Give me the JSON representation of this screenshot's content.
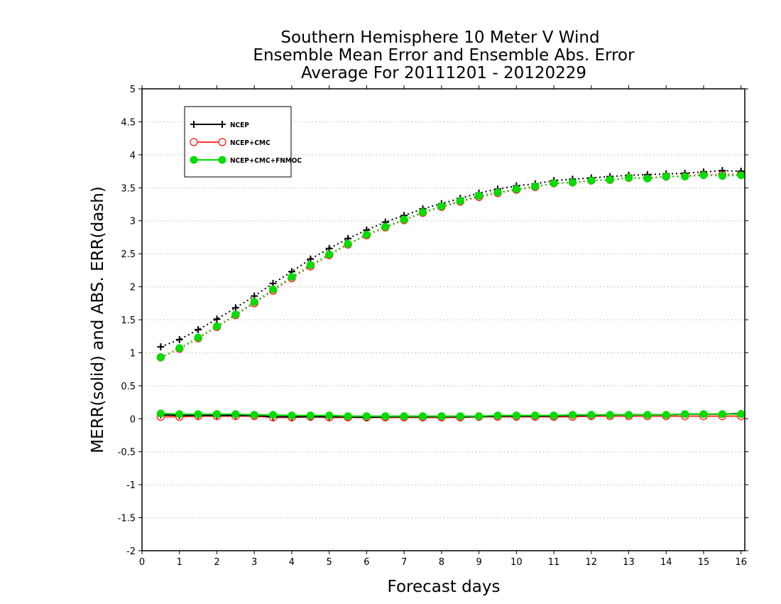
{
  "chart_data": {
    "type": "line",
    "title": [
      "Southern Hemisphere 10 Meter V Wind",
      "Ensemble Mean Error and Ensemble Abs. Error",
      "Average For 20111201 - 20120229"
    ],
    "xlabel": "Forecast days",
    "ylabel": "MERR(solid) and ABS. ERR(dash)",
    "xlim": [
      0,
      16.1
    ],
    "ylim": [
      -2,
      5
    ],
    "x_ticks": [
      0,
      1,
      2,
      3,
      4,
      5,
      6,
      7,
      8,
      9,
      10,
      11,
      12,
      13,
      14,
      15,
      16
    ],
    "y_ticks": [
      -2,
      -1.5,
      -1,
      -0.5,
      0,
      0.5,
      1,
      1.5,
      2,
      2.5,
      3,
      3.5,
      4,
      4.5,
      5
    ],
    "y_tick_labels": [
      "-2",
      "-1.5",
      "-1",
      "-0.5",
      "0",
      "0.5",
      "1",
      "1.5",
      "2",
      "2.5",
      "3",
      "3.5",
      "4",
      "4.5",
      "5"
    ],
    "grid": "horizontal dotted",
    "legend_position": "top-left",
    "x": [
      0.5,
      1,
      1.5,
      2,
      2.5,
      3,
      3.5,
      4,
      4.5,
      5,
      5.5,
      6,
      6.5,
      7,
      7.5,
      8,
      8.5,
      9,
      9.5,
      10,
      10.5,
      11,
      11.5,
      12,
      12.5,
      13,
      13.5,
      14,
      14.5,
      15,
      15.5,
      16
    ],
    "series": [
      {
        "name": "NCEP",
        "color": "#000000",
        "marker": "plus",
        "abs_err": [
          1.09,
          1.2,
          1.35,
          1.51,
          1.68,
          1.86,
          2.05,
          2.23,
          2.42,
          2.58,
          2.73,
          2.86,
          2.98,
          3.08,
          3.18,
          3.26,
          3.34,
          3.42,
          3.48,
          3.53,
          3.56,
          3.61,
          3.63,
          3.65,
          3.67,
          3.69,
          3.7,
          3.71,
          3.72,
          3.74,
          3.76,
          3.75
        ],
        "mean_err": [
          0.06,
          0.05,
          0.05,
          0.05,
          0.05,
          0.05,
          0.03,
          0.03,
          0.03,
          0.03,
          0.03,
          0.02,
          0.03,
          0.03,
          0.03,
          0.03,
          0.03,
          0.03,
          0.04,
          0.04,
          0.04,
          0.04,
          0.05,
          0.05,
          0.06,
          0.06,
          0.06,
          0.06,
          0.07,
          0.07,
          0.07,
          0.08
        ]
      },
      {
        "name": "NCEP+CMC",
        "color": "#ff3333",
        "marker": "open-circle",
        "abs_err": [
          0.93,
          1.06,
          1.22,
          1.39,
          1.57,
          1.75,
          1.94,
          2.13,
          2.31,
          2.48,
          2.64,
          2.78,
          2.9,
          3.01,
          3.12,
          3.21,
          3.29,
          3.36,
          3.42,
          3.47,
          3.51,
          3.57,
          3.58,
          3.61,
          3.62,
          3.65,
          3.65,
          3.67,
          3.68,
          3.7,
          3.7,
          3.71
        ],
        "mean_err": [
          0.03,
          0.03,
          0.04,
          0.04,
          0.04,
          0.04,
          0.02,
          0.02,
          0.03,
          0.02,
          0.02,
          0.02,
          0.02,
          0.02,
          0.02,
          0.02,
          0.02,
          0.03,
          0.03,
          0.03,
          0.03,
          0.03,
          0.03,
          0.04,
          0.04,
          0.04,
          0.04,
          0.04,
          0.04,
          0.04,
          0.04,
          0.04
        ]
      },
      {
        "name": "NCEP+CMC+FNMOC",
        "color": "#00dd00",
        "marker": "filled-circle",
        "abs_err": [
          0.93,
          1.07,
          1.23,
          1.4,
          1.58,
          1.77,
          1.96,
          2.15,
          2.33,
          2.49,
          2.65,
          2.79,
          2.91,
          3.02,
          3.13,
          3.22,
          3.3,
          3.38,
          3.43,
          3.48,
          3.52,
          3.57,
          3.58,
          3.61,
          3.62,
          3.65,
          3.64,
          3.67,
          3.67,
          3.69,
          3.68,
          3.69
        ],
        "mean_err": [
          0.08,
          0.07,
          0.07,
          0.07,
          0.07,
          0.06,
          0.06,
          0.05,
          0.05,
          0.05,
          0.04,
          0.04,
          0.04,
          0.04,
          0.04,
          0.04,
          0.04,
          0.04,
          0.05,
          0.05,
          0.05,
          0.05,
          0.06,
          0.06,
          0.06,
          0.06,
          0.06,
          0.06,
          0.07,
          0.07,
          0.07,
          0.07
        ]
      }
    ]
  }
}
